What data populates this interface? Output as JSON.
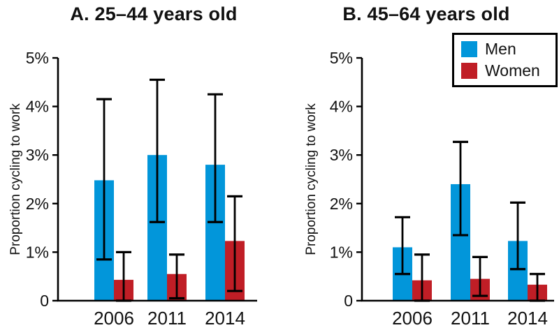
{
  "legend": {
    "items": [
      {
        "label": "Men",
        "color": "#0296da"
      },
      {
        "label": "Women",
        "color": "#c01e26"
      }
    ]
  },
  "colors": {
    "men_blue": "#0296da",
    "women_red": "#c01e26",
    "axis_black": "#000000",
    "background": "#ffffff"
  },
  "chart_data": [
    {
      "type": "bar",
      "title": "A. 25–44 years old",
      "ylabel": "Proportion cycling to work",
      "xlabel": "",
      "categories": [
        "2006",
        "2011",
        "2014"
      ],
      "ylim": [
        0,
        5
      ],
      "ytick_labels": [
        "0",
        "1%",
        "2%",
        "3%",
        "4%",
        "5%"
      ],
      "grid": false,
      "error_bars": true,
      "series": [
        {
          "name": "Men",
          "color": "#0296da",
          "values": [
            2.48,
            3.0,
            2.8
          ],
          "err_low": [
            0.85,
            1.62,
            1.62
          ],
          "err_high": [
            4.15,
            4.55,
            4.25
          ]
        },
        {
          "name": "Women",
          "color": "#c01e26",
          "values": [
            0.43,
            0.55,
            1.23
          ],
          "err_low": [
            0.0,
            0.05,
            0.2
          ],
          "err_high": [
            1.0,
            0.95,
            2.15
          ]
        }
      ]
    },
    {
      "type": "bar",
      "title": "B. 45–64 years old",
      "ylabel": "Proportion cycling to work",
      "xlabel": "",
      "categories": [
        "2006",
        "2011",
        "2014"
      ],
      "ylim": [
        0,
        5
      ],
      "ytick_labels": [
        "0",
        "1%",
        "2%",
        "3%",
        "4%",
        "5%"
      ],
      "grid": false,
      "error_bars": true,
      "legend_position": "upper right",
      "series": [
        {
          "name": "Men",
          "color": "#0296da",
          "values": [
            1.1,
            2.4,
            1.23
          ],
          "err_low": [
            0.55,
            1.35,
            0.65
          ],
          "err_high": [
            1.72,
            3.27,
            2.02
          ]
        },
        {
          "name": "Women",
          "color": "#c01e26",
          "values": [
            0.42,
            0.45,
            0.33
          ],
          "err_low": [
            0.0,
            0.1,
            0.0
          ],
          "err_high": [
            0.95,
            0.9,
            0.55
          ]
        }
      ]
    }
  ]
}
